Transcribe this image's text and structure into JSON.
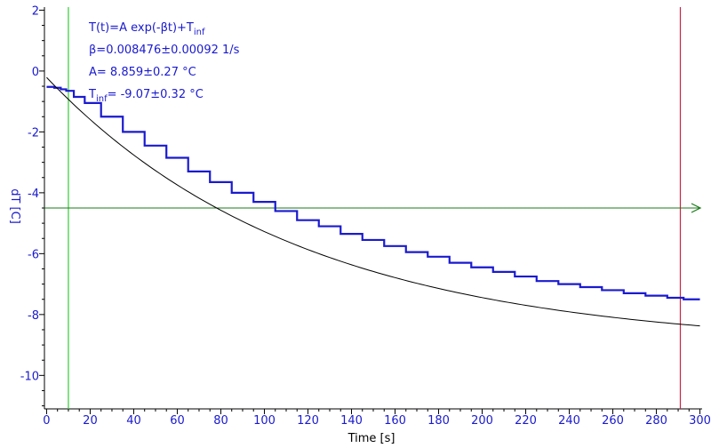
{
  "chart_data": {
    "type": "line",
    "xlabel": "Time [s]",
    "ylabel": "dT [C]",
    "xlim": [
      -1,
      301
    ],
    "ylim": [
      -11.1,
      2.1
    ],
    "x_ticks": [
      0,
      20,
      40,
      60,
      80,
      100,
      120,
      140,
      160,
      180,
      200,
      220,
      240,
      260,
      280,
      300
    ],
    "y_ticks": [
      2,
      0,
      -2,
      -4,
      -6,
      -8,
      -10
    ],
    "grid": false,
    "annotations": {
      "formula": {
        "main": "T(t)=A exp(-βt)+T",
        "sub": "inf"
      },
      "beta": "β=0.008476±0.00092 1/s",
      "amplitude": "A= 8.859±0.27 °C",
      "tinf": {
        "prefix": "T",
        "sub": "inf",
        "rest": "= -9.07±0.32 °C"
      }
    },
    "markers": {
      "green_vertical_x": 10,
      "red_vertical_x": 291,
      "horizontal_y": -4.5
    },
    "fit": {
      "A": 8.859,
      "beta": 0.008476,
      "Tinf": -9.07,
      "x_range": [
        0,
        300
      ]
    },
    "series": [
      {
        "kind": "measured",
        "color": "#1a1ad0",
        "x": [
          0,
          2,
          5,
          8,
          10,
          15,
          20,
          30,
          40,
          50,
          60,
          70,
          80,
          90,
          100,
          110,
          120,
          130,
          140,
          150,
          160,
          170,
          180,
          190,
          200,
          210,
          220,
          230,
          240,
          250,
          260,
          270,
          280,
          290,
          295,
          300
        ],
        "y": [
          -0.52,
          -0.52,
          -0.55,
          -0.6,
          -0.65,
          -0.85,
          -1.05,
          -1.5,
          -2.0,
          -2.45,
          -2.85,
          -3.3,
          -3.65,
          -4.0,
          -4.3,
          -4.6,
          -4.9,
          -5.1,
          -5.35,
          -5.55,
          -5.75,
          -5.95,
          -6.1,
          -6.3,
          -6.45,
          -6.6,
          -6.75,
          -6.9,
          -7.0,
          -7.1,
          -7.2,
          -7.3,
          -7.38,
          -7.45,
          -7.5,
          -7.5
        ]
      },
      {
        "kind": "fit",
        "color": "#000000"
      }
    ],
    "colors": {
      "axis": "#000000",
      "tick_label": "#1a1ad0",
      "green_line": "#33cc33",
      "red_line": "#cc2244",
      "horizontal_line": "#1a7a1a",
      "measured": "#1a1ad0",
      "fit": "#000000"
    }
  }
}
